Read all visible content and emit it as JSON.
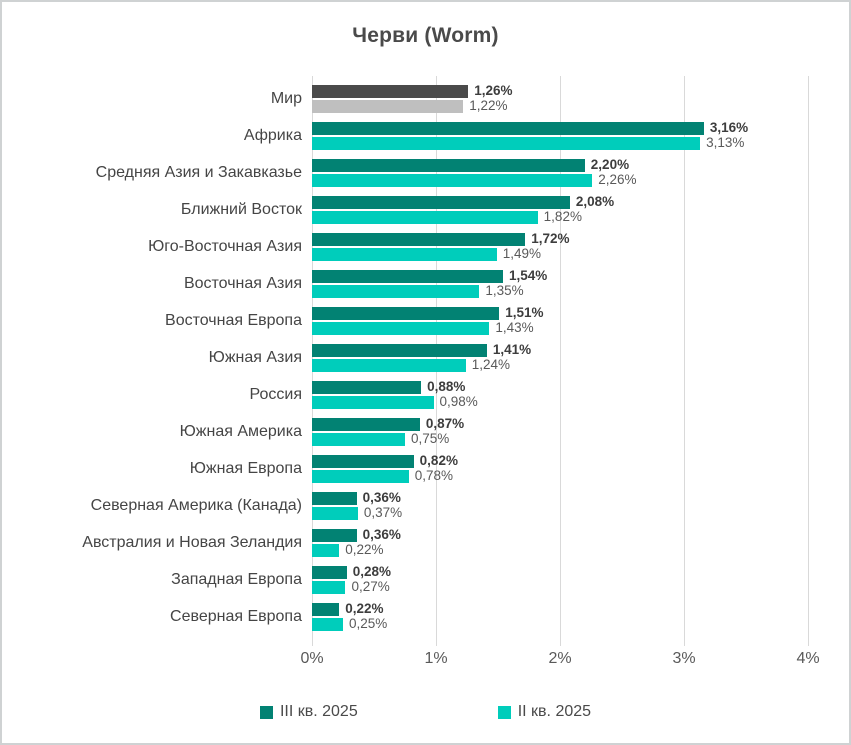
{
  "title": "Черви (Worm)",
  "colors": {
    "q3_default": "#028273",
    "q2_default": "#00cdbb",
    "world_q3": "#4a4a4a",
    "world_q2": "#bfbfbf",
    "gridline": "#d9d9d9",
    "label_bold": "#3d3d3d",
    "label_regular": "#595959"
  },
  "chart_data": {
    "type": "bar",
    "orientation": "horizontal",
    "title": "Черви (Worm)",
    "xlabel": "",
    "ylabel": "",
    "xlim": [
      0,
      4
    ],
    "x_unit": "%",
    "grid": "vertical",
    "legend_position": "bottom",
    "x_ticks": [
      "0%",
      "1%",
      "2%",
      "3%",
      "4%"
    ],
    "series_names": [
      "III кв. 2025",
      "II кв. 2025"
    ],
    "legend": [
      {
        "name": "III кв. 2025",
        "color": "#028273"
      },
      {
        "name": "II кв. 2025",
        "color": "#00cdbb"
      }
    ],
    "rows": [
      {
        "category": "Мир",
        "q3": 1.26,
        "q3_label": "1,26%",
        "q2": 1.22,
        "q2_label": "1,22%",
        "q3_color": "#4a4a4a",
        "q2_color": "#bfbfbf"
      },
      {
        "category": "Африка",
        "q3": 3.16,
        "q3_label": "3,16%",
        "q2": 3.13,
        "q2_label": "3,13%"
      },
      {
        "category": "Средняя Азия и Закавказье",
        "q3": 2.2,
        "q3_label": "2,20%",
        "q2": 2.26,
        "q2_label": "2,26%"
      },
      {
        "category": "Ближний Восток",
        "q3": 2.08,
        "q3_label": "2,08%",
        "q2": 1.82,
        "q2_label": "1,82%"
      },
      {
        "category": "Юго-Восточная Азия",
        "q3": 1.72,
        "q3_label": "1,72%",
        "q2": 1.49,
        "q2_label": "1,49%"
      },
      {
        "category": "Восточная Азия",
        "q3": 1.54,
        "q3_label": "1,54%",
        "q2": 1.35,
        "q2_label": "1,35%"
      },
      {
        "category": "Восточная Европа",
        "q3": 1.51,
        "q3_label": "1,51%",
        "q2": 1.43,
        "q2_label": "1,43%"
      },
      {
        "category": "Южная Азия",
        "q3": 1.41,
        "q3_label": "1,41%",
        "q2": 1.24,
        "q2_label": "1,24%"
      },
      {
        "category": "Россия",
        "q3": 0.88,
        "q3_label": "0,88%",
        "q2": 0.98,
        "q2_label": "0,98%"
      },
      {
        "category": "Южная Америка",
        "q3": 0.87,
        "q3_label": "0,87%",
        "q2": 0.75,
        "q2_label": "0,75%"
      },
      {
        "category": "Южная Европа",
        "q3": 0.82,
        "q3_label": "0,82%",
        "q2": 0.78,
        "q2_label": "0,78%"
      },
      {
        "category": "Северная Америка (Канада)",
        "q3": 0.36,
        "q3_label": "0,36%",
        "q2": 0.37,
        "q2_label": "0,37%"
      },
      {
        "category": "Австралия и Новая Зеландия",
        "q3": 0.36,
        "q3_label": "0,36%",
        "q2": 0.22,
        "q2_label": "0,22%"
      },
      {
        "category": "Западная Европа",
        "q3": 0.28,
        "q3_label": "0,28%",
        "q2": 0.27,
        "q2_label": "0,27%"
      },
      {
        "category": "Северная Европа",
        "q3": 0.22,
        "q3_label": "0,22%",
        "q2": 0.25,
        "q2_label": "0,25%"
      }
    ]
  }
}
